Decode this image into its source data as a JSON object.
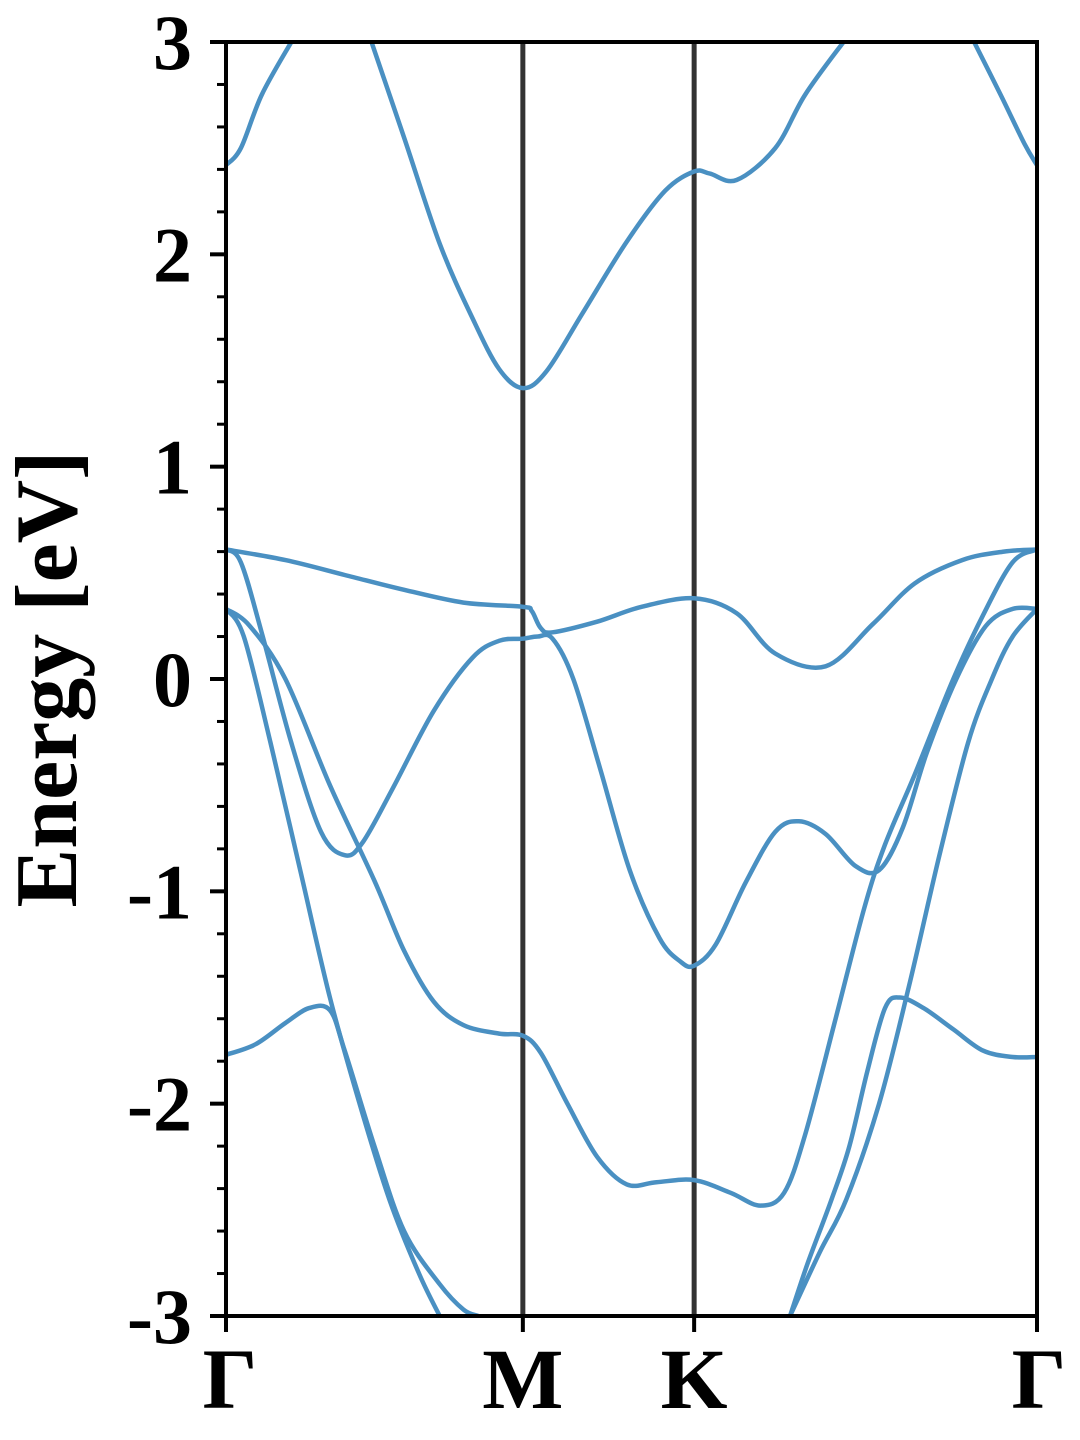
{
  "chart_data": {
    "type": "line",
    "title": "",
    "xlabel": "",
    "ylabel": "Energy [eV]",
    "ylim": [
      -3,
      3
    ],
    "xlim": [
      0,
      2.732
    ],
    "high_symmetry_points": [
      {
        "label": "Γ",
        "x": 0
      },
      {
        "label": "M",
        "x": 1.0
      },
      {
        "label": "K",
        "x": 1.577
      },
      {
        "label": "Γ",
        "x": 2.732
      }
    ],
    "y_ticks": [
      {
        "value": 3,
        "label": "3"
      },
      {
        "value": 2,
        "label": "2"
      },
      {
        "value": 1,
        "label": "1"
      },
      {
        "value": 0,
        "label": "0"
      },
      {
        "value": -1,
        "label": "-1"
      },
      {
        "value": -2,
        "label": "-2"
      },
      {
        "value": -3,
        "label": "-3"
      }
    ],
    "y_minor_step": 0.2,
    "line_color": "#4a90c2",
    "vline_color": "#333333",
    "grid": false,
    "series": [
      {
        "values": [
          [
            0,
            2.42
          ],
          [
            0.05,
            2.5
          ],
          [
            0.12,
            2.75
          ],
          [
            0.22,
            3.0
          ]
        ]
      },
      {
        "values": [
          [
            0.49,
            3.0
          ],
          [
            0.6,
            2.55
          ],
          [
            0.72,
            2.05
          ],
          [
            0.83,
            1.7
          ],
          [
            0.92,
            1.46
          ],
          [
            1.0,
            1.37
          ],
          [
            1.08,
            1.45
          ],
          [
            1.2,
            1.72
          ],
          [
            1.35,
            2.06
          ],
          [
            1.48,
            2.3
          ],
          [
            1.577,
            2.39
          ],
          [
            1.63,
            2.38
          ],
          [
            1.72,
            2.35
          ],
          [
            1.85,
            2.5
          ],
          [
            1.95,
            2.75
          ],
          [
            2.08,
            3.0
          ]
        ]
      },
      {
        "values": [
          [
            2.52,
            3.0
          ],
          [
            2.61,
            2.75
          ],
          [
            2.69,
            2.52
          ],
          [
            2.732,
            2.42
          ]
        ]
      },
      {
        "values": [
          [
            0,
            0.61
          ],
          [
            0.2,
            0.56
          ],
          [
            0.4,
            0.49
          ],
          [
            0.6,
            0.42
          ],
          [
            0.8,
            0.36
          ],
          [
            1.0,
            0.34
          ],
          [
            1.03,
            0.32
          ],
          [
            1.06,
            0.24
          ],
          [
            1.1,
            0.22
          ],
          [
            1.25,
            0.27
          ],
          [
            1.4,
            0.34
          ],
          [
            1.577,
            0.38
          ],
          [
            1.72,
            0.31
          ],
          [
            1.85,
            0.12
          ],
          [
            2.02,
            0.06
          ],
          [
            2.18,
            0.26
          ],
          [
            2.32,
            0.45
          ],
          [
            2.48,
            0.56
          ],
          [
            2.62,
            0.6
          ],
          [
            2.732,
            0.61
          ]
        ]
      },
      {
        "values": [
          [
            0,
            0.61
          ],
          [
            0.05,
            0.55
          ],
          [
            0.12,
            0.22
          ],
          [
            0.22,
            -0.3
          ],
          [
            0.32,
            -0.72
          ],
          [
            0.4,
            -0.83
          ],
          [
            0.46,
            -0.77
          ],
          [
            0.56,
            -0.52
          ],
          [
            0.7,
            -0.15
          ],
          [
            0.83,
            0.1
          ],
          [
            0.92,
            0.18
          ],
          [
            1.0,
            0.19
          ],
          [
            1.05,
            0.2
          ],
          [
            1.1,
            0.19
          ],
          [
            1.17,
            0.0
          ],
          [
            1.26,
            -0.42
          ],
          [
            1.36,
            -0.9
          ],
          [
            1.46,
            -1.22
          ],
          [
            1.53,
            -1.33
          ],
          [
            1.577,
            -1.35
          ],
          [
            1.65,
            -1.25
          ],
          [
            1.75,
            -0.96
          ],
          [
            1.85,
            -0.72
          ],
          [
            1.93,
            -0.67
          ],
          [
            2.02,
            -0.73
          ],
          [
            2.12,
            -0.88
          ],
          [
            2.2,
            -0.9
          ],
          [
            2.28,
            -0.7
          ],
          [
            2.36,
            -0.35
          ],
          [
            2.46,
            0.0
          ],
          [
            2.56,
            0.25
          ],
          [
            2.65,
            0.33
          ],
          [
            2.732,
            0.33
          ]
        ]
      },
      {
        "values": [
          [
            0,
            0.33
          ],
          [
            0.08,
            0.25
          ],
          [
            0.2,
            0.0
          ],
          [
            0.35,
            -0.5
          ],
          [
            0.5,
            -0.95
          ],
          [
            0.6,
            -1.28
          ],
          [
            0.7,
            -1.52
          ],
          [
            0.8,
            -1.63
          ],
          [
            0.92,
            -1.67
          ],
          [
            1.0,
            -1.68
          ],
          [
            1.06,
            -1.76
          ],
          [
            1.15,
            -2.0
          ],
          [
            1.25,
            -2.25
          ],
          [
            1.35,
            -2.38
          ],
          [
            1.45,
            -2.37
          ],
          [
            1.577,
            -2.36
          ],
          [
            1.7,
            -2.42
          ],
          [
            1.8,
            -2.48
          ],
          [
            1.88,
            -2.42
          ],
          [
            1.95,
            -2.15
          ],
          [
            2.05,
            -1.62
          ],
          [
            2.15,
            -1.08
          ],
          [
            2.22,
            -0.78
          ],
          [
            2.32,
            -0.45
          ],
          [
            2.45,
            0.0
          ],
          [
            2.55,
            0.3
          ],
          [
            2.65,
            0.55
          ],
          [
            2.732,
            0.61
          ]
        ]
      },
      {
        "values": [
          [
            0,
            -1.77
          ],
          [
            0.1,
            -1.72
          ],
          [
            0.2,
            -1.62
          ],
          [
            0.28,
            -1.55
          ],
          [
            0.35,
            -1.56
          ],
          [
            0.4,
            -1.75
          ],
          [
            0.5,
            -2.2
          ],
          [
            0.6,
            -2.6
          ],
          [
            0.72,
            -2.85
          ],
          [
            0.8,
            -2.97
          ],
          [
            0.85,
            -3.0
          ]
        ]
      },
      {
        "values": [
          [
            0,
            0.33
          ],
          [
            0.06,
            0.2
          ],
          [
            0.15,
            -0.3
          ],
          [
            0.25,
            -0.9
          ],
          [
            0.35,
            -1.5
          ],
          [
            0.45,
            -2.0
          ],
          [
            0.55,
            -2.45
          ],
          [
            0.65,
            -2.8
          ],
          [
            0.72,
            -3.0
          ]
        ]
      },
      {
        "values": [
          [
            1.9,
            -3.0
          ],
          [
            1.96,
            -2.75
          ],
          [
            2.04,
            -2.45
          ],
          [
            2.1,
            -2.2
          ],
          [
            2.16,
            -1.85
          ],
          [
            2.22,
            -1.55
          ],
          [
            2.27,
            -1.5
          ],
          [
            2.35,
            -1.55
          ],
          [
            2.45,
            -1.65
          ],
          [
            2.55,
            -1.75
          ],
          [
            2.65,
            -1.78
          ],
          [
            2.732,
            -1.78
          ]
        ]
      },
      {
        "values": [
          [
            1.9,
            -3.0
          ],
          [
            2.0,
            -2.7
          ],
          [
            2.09,
            -2.45
          ],
          [
            2.2,
            -2.0
          ],
          [
            2.3,
            -1.45
          ],
          [
            2.4,
            -0.85
          ],
          [
            2.5,
            -0.3
          ],
          [
            2.58,
            0.0
          ],
          [
            2.65,
            0.2
          ],
          [
            2.732,
            0.33
          ]
        ]
      }
    ]
  }
}
